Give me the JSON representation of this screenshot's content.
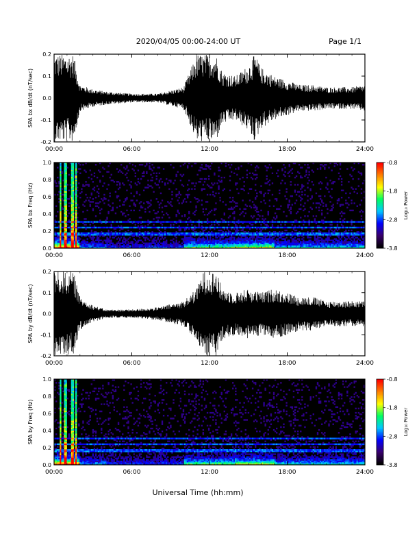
{
  "header": {
    "title": "2020/04/05  00:00-24:00 UT",
    "page_label": "Page 1/1"
  },
  "footer": {
    "xlabel": "Universal Time (hh:mm)"
  },
  "colors": {
    "trace": "#000000",
    "spectrogram_background": "#000000",
    "colormap": [
      "#000000",
      "#3a006e",
      "#0000ff",
      "#00c8ff",
      "#00ff60",
      "#ffff00",
      "#ff8000",
      "#ff0000"
    ]
  },
  "chart_data": [
    {
      "type": "line",
      "id": "bx-wave",
      "ylabel": "SPA bx dB/dt (nT/sec)",
      "x_ticks": [
        "00:00",
        "06:00",
        "12:00",
        "18:00",
        "24:00"
      ],
      "xlim": [
        "00:00",
        "24:00"
      ],
      "y_ticks": [
        "0.2",
        "0.1",
        "0.0",
        "-0.1",
        "-0.2"
      ],
      "ylim": [
        -0.2,
        0.2
      ],
      "envelope": {
        "x_hours": [
          0,
          0.5,
          1,
          1.5,
          2,
          3,
          4,
          5,
          6,
          8,
          10,
          11,
          11.5,
          12,
          12.5,
          13,
          14,
          15,
          15.5,
          16,
          17,
          18,
          19,
          20,
          21,
          22,
          23,
          24
        ],
        "amplitude": [
          0.2,
          0.2,
          0.2,
          0.2,
          0.06,
          0.04,
          0.03,
          0.025,
          0.02,
          0.02,
          0.05,
          0.2,
          0.2,
          0.2,
          0.2,
          0.12,
          0.1,
          0.15,
          0.2,
          0.14,
          0.1,
          0.08,
          0.06,
          0.06,
          0.05,
          0.05,
          0.05,
          0.06
        ]
      }
    },
    {
      "type": "heatmap",
      "id": "bx-spectrogram",
      "ylabel": "SPA bx Freq (Hz)",
      "x_ticks": [
        "00:00",
        "06:00",
        "12:00",
        "18:00",
        "24:00"
      ],
      "xlim": [
        "00:00",
        "24:00"
      ],
      "y_ticks": [
        "1.0",
        "0.8",
        "0.6",
        "0.4",
        "0.2",
        "0.0"
      ],
      "ylim": [
        0,
        1.0
      ],
      "colorbar": {
        "label": "Log₁₀ Power",
        "ticks": [
          "-0.8",
          "-1.8",
          "-2.8",
          "-3.8"
        ],
        "range": [
          -3.8,
          -0.8
        ]
      },
      "bright_columns_hours": [
        0.5,
        0.9,
        1.4,
        1.7
      ],
      "harmonic_bands_hz": [
        0.17,
        0.24,
        0.31
      ]
    },
    {
      "type": "line",
      "id": "by-wave",
      "ylabel": "SPA by dB/dt (nT/sec)",
      "x_ticks": [
        "00:00",
        "06:00",
        "12:00",
        "18:00",
        "24:00"
      ],
      "xlim": [
        "00:00",
        "24:00"
      ],
      "y_ticks": [
        "0.2",
        "0.1",
        "0.0",
        "-0.1",
        "-0.2"
      ],
      "ylim": [
        -0.2,
        0.2
      ],
      "envelope": {
        "x_hours": [
          0,
          0.5,
          1,
          1.5,
          2,
          3,
          4,
          5,
          6,
          8,
          10,
          11,
          11.5,
          12,
          12.5,
          13,
          14,
          15,
          16,
          17,
          18,
          19,
          20,
          21,
          22,
          23,
          24
        ],
        "amplitude": [
          0.2,
          0.2,
          0.2,
          0.2,
          0.08,
          0.04,
          0.02,
          0.02,
          0.02,
          0.03,
          0.06,
          0.12,
          0.2,
          0.2,
          0.2,
          0.12,
          0.1,
          0.12,
          0.1,
          0.12,
          0.1,
          0.08,
          0.08,
          0.06,
          0.06,
          0.06,
          0.06
        ]
      }
    },
    {
      "type": "heatmap",
      "id": "by-spectrogram",
      "ylabel": "SPA by Freq (Hz)",
      "x_ticks": [
        "00:00",
        "06:00",
        "12:00",
        "18:00",
        "24:00"
      ],
      "xlim": [
        "00:00",
        "24:00"
      ],
      "y_ticks": [
        "1.0",
        "0.8",
        "0.6",
        "0.4",
        "0.2",
        "0.0"
      ],
      "ylim": [
        0,
        1.0
      ],
      "colorbar": {
        "label": "Log₁₀ Power",
        "ticks": [
          "-0.8",
          "-1.8",
          "-2.8",
          "-3.8"
        ],
        "range": [
          -3.8,
          -0.8
        ]
      },
      "bright_columns_hours": [
        0.5,
        0.9,
        1.4,
        1.7
      ],
      "harmonic_bands_hz": [
        0.17,
        0.24,
        0.31
      ]
    }
  ]
}
